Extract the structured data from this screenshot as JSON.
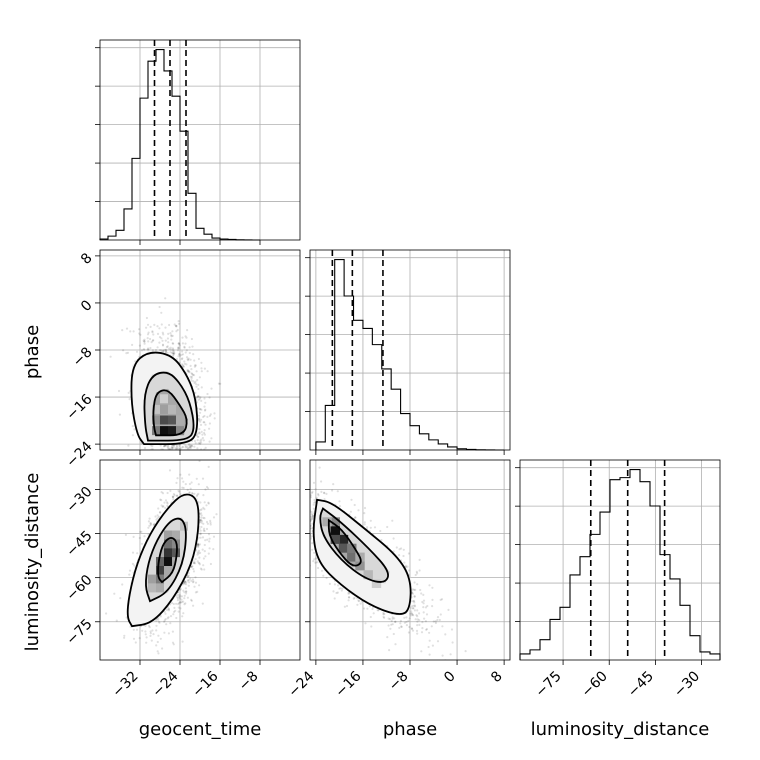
{
  "chart_data": {
    "type": "corner",
    "parameters": [
      "geocent_time",
      "phase",
      "luminosity_distance"
    ],
    "colors": {
      "line": "#000000",
      "points": "#000000",
      "grid": "#b0b0b0"
    },
    "grid": true,
    "marginals": [
      {
        "name": "geocent_time",
        "xlim": [
          -40,
          0
        ],
        "xticks": [
          -32,
          -24,
          -16,
          -8
        ],
        "xticklabels": [
          "−32",
          "−24",
          "−16",
          "−8"
        ],
        "quantiles": [
          -29.1,
          -26.0,
          -22.8
        ],
        "bin_edges": [
          -40,
          -38.4,
          -36.8,
          -35.2,
          -33.6,
          -32,
          -30.4,
          -28.8,
          -27.2,
          -25.6,
          -24,
          -22.4,
          -20.8,
          -19.2,
          -17.6,
          -16,
          -14.4,
          -12.8,
          -11.2,
          -9.6,
          -8
        ],
        "counts": [
          0.5,
          2,
          5,
          16,
          42,
          73,
          92,
          98,
          87,
          74,
          56,
          24,
          6,
          3,
          1,
          0.5,
          0.3,
          0.1,
          0.05,
          0
        ]
      },
      {
        "name": "phase",
        "xlim": [
          -25,
          9
        ],
        "xticks": [
          -24,
          -16,
          -8,
          0,
          8
        ],
        "xticklabels": [
          "−24",
          "−16",
          "−8",
          "0",
          "8"
        ],
        "quantiles": [
          -21.2,
          -17.8,
          -12.6
        ],
        "bin_edges": [
          -24,
          -22.4,
          -20.8,
          -19.2,
          -17.6,
          -16,
          -14.4,
          -12.8,
          -11.2,
          -9.6,
          -8,
          -6.4,
          -4.8,
          -3.2,
          -1.6,
          0,
          1.6,
          3.2,
          4.8,
          6.4,
          8
        ],
        "counts": [
          4,
          22,
          94,
          76,
          64,
          60,
          52,
          40,
          30,
          18,
          12,
          8,
          5,
          3,
          1.5,
          0.6,
          0.3,
          0.1,
          0.05,
          0
        ]
      },
      {
        "name": "luminosity_distance",
        "xlim": [
          -89,
          -24
        ],
        "xticks": [
          -75,
          -60,
          -45,
          -30
        ],
        "xticklabels": [
          "−75",
          "−60",
          "−45",
          "−30"
        ],
        "quantiles": [
          -66.0,
          -54.0,
          -42.0
        ],
        "bin_edges": [
          -89,
          -85.75,
          -82.5,
          -79.25,
          -76,
          -72.75,
          -69.5,
          -66.25,
          -63,
          -59.75,
          -56.5,
          -53.25,
          -50,
          -46.75,
          -43.5,
          -40.25,
          -37,
          -33.75,
          -30.5,
          -27.25,
          -24
        ],
        "counts": [
          3,
          5,
          10,
          20,
          26,
          42,
          51,
          62,
          73,
          89,
          90,
          94,
          88,
          76,
          52,
          40,
          27,
          12,
          4,
          3
        ]
      }
    ],
    "pairs": [
      {
        "x": "geocent_time",
        "y": "phase",
        "xlim": [
          -40,
          0
        ],
        "ylim": [
          -25,
          9
        ],
        "yticks": [
          8,
          0,
          -8,
          -16,
          -24
        ],
        "yticklabels": [
          "8",
          "0",
          "−8",
          "−16",
          "−24"
        ],
        "mean": [
          -26,
          -17
        ],
        "sd": [
          3.2,
          5.5
        ],
        "corr": -0.25,
        "cells": [
          {
            "x": -27.2,
            "y": -21.7,
            "v": 1.0
          },
          {
            "x": -25.6,
            "y": -21.7,
            "v": 0.95
          },
          {
            "x": -27.2,
            "y": -19.9,
            "v": 0.75
          },
          {
            "x": -25.6,
            "y": -19.9,
            "v": 0.7
          },
          {
            "x": -28.8,
            "y": -21.7,
            "v": 0.55
          },
          {
            "x": -28.8,
            "y": -19.9,
            "v": 0.45
          },
          {
            "x": -24.0,
            "y": -21.7,
            "v": 0.5
          },
          {
            "x": -24.0,
            "y": -19.9,
            "v": 0.35
          },
          {
            "x": -27.2,
            "y": -18.1,
            "v": 0.4
          },
          {
            "x": -25.6,
            "y": -18.1,
            "v": 0.3
          },
          {
            "x": -28.8,
            "y": -18.1,
            "v": 0.25
          },
          {
            "x": -27.2,
            "y": -16.3,
            "v": 0.2
          }
        ],
        "contours": [
          [
            [
              -28.8,
              -22.5
            ],
            [
              -23.2,
              -22.5
            ],
            [
              -22.4,
              -19.8
            ],
            [
              -24,
              -17.4
            ],
            [
              -26.4,
              -14.6
            ],
            [
              -28.8,
              -15.2
            ],
            [
              -29.4,
              -18.4
            ],
            [
              -29.2,
              -21.2
            ]
          ],
          [
            [
              -30.4,
              -23.4
            ],
            [
              -22.4,
              -23.4
            ],
            [
              -21.0,
              -21.4
            ],
            [
              -22.0,
              -16.8
            ],
            [
              -24.0,
              -13.6
            ],
            [
              -26.4,
              -11.6
            ],
            [
              -29.6,
              -12.2
            ],
            [
              -31.2,
              -15.6
            ],
            [
              -31.0,
              -20.8
            ]
          ],
          [
            [
              -31.2,
              -24.0
            ],
            [
              -22.4,
              -24.0
            ],
            [
              -20.4,
              -22.0
            ],
            [
              -20.8,
              -16.2
            ],
            [
              -22.6,
              -12.2
            ],
            [
              -25.6,
              -8.8
            ],
            [
              -30.4,
              -8.2
            ],
            [
              -33.6,
              -10.6
            ],
            [
              -33.8,
              -16.8
            ],
            [
              -32.6,
              -22.4
            ]
          ]
        ]
      },
      {
        "x": "geocent_time",
        "y": "luminosity_distance",
        "xlim": [
          -40,
          0
        ],
        "ylim": [
          -88,
          -20
        ],
        "yticks": [
          -30,
          -45,
          -60,
          -75
        ],
        "yticklabels": [
          "−30",
          "−45",
          "−60",
          "−75"
        ],
        "mean": [
          -26,
          -54
        ],
        "sd": [
          3.2,
          11
        ],
        "corr": 0.5,
        "cells": [
          {
            "x": -26.4,
            "y": -54.5,
            "v": 1.0
          },
          {
            "x": -26.4,
            "y": -51.5,
            "v": 0.85
          },
          {
            "x": -28.0,
            "y": -57.5,
            "v": 0.8
          },
          {
            "x": -24.8,
            "y": -51.5,
            "v": 0.7
          },
          {
            "x": -26.4,
            "y": -48.5,
            "v": 0.6
          },
          {
            "x": -28.0,
            "y": -54.5,
            "v": 0.65
          },
          {
            "x": -28.0,
            "y": -60.5,
            "v": 0.55
          },
          {
            "x": -24.8,
            "y": -48.5,
            "v": 0.5
          },
          {
            "x": -24.8,
            "y": -45.5,
            "v": 0.35
          },
          {
            "x": -29.6,
            "y": -60.5,
            "v": 0.4
          },
          {
            "x": -26.4,
            "y": -45.5,
            "v": 0.4
          },
          {
            "x": -29.6,
            "y": -63.5,
            "v": 0.3
          },
          {
            "x": -23.2,
            "y": -42.5,
            "v": 0.25
          },
          {
            "x": -28.0,
            "y": -63.5,
            "v": 0.35
          }
        ],
        "contours": [
          [
            [
              -27.6,
              -61.5
            ],
            [
              -25.4,
              -58.5
            ],
            [
              -24.6,
              -52.5
            ],
            [
              -24.6,
              -47.5
            ],
            [
              -26.0,
              -46.0
            ],
            [
              -27.6,
              -49.0
            ],
            [
              -28.4,
              -55.5
            ],
            [
              -28.4,
              -60.0
            ]
          ],
          [
            [
              -30.0,
              -68.0
            ],
            [
              -26.4,
              -65.0
            ],
            [
              -23.4,
              -55.5
            ],
            [
              -22.6,
              -44.5
            ],
            [
              -23.6,
              -39.5
            ],
            [
              -26.0,
              -40.5
            ],
            [
              -28.6,
              -47.0
            ],
            [
              -30.4,
              -55.0
            ],
            [
              -31.0,
              -63.0
            ]
          ],
          [
            [
              -33.6,
              -76.5
            ],
            [
              -29.6,
              -75.5
            ],
            [
              -25.4,
              -67.5
            ],
            [
              -21.6,
              -55.5
            ],
            [
              -20.2,
              -43.5
            ],
            [
              -20.4,
              -33.0
            ],
            [
              -23.2,
              -31.0
            ],
            [
              -26.6,
              -36.5
            ],
            [
              -30.0,
              -45.0
            ],
            [
              -32.6,
              -55.0
            ],
            [
              -34.2,
              -66.0
            ],
            [
              -34.6,
              -73.5
            ]
          ]
        ]
      },
      {
        "x": "phase",
        "y": "luminosity_distance",
        "xlim": [
          -25,
          9
        ],
        "ylim": [
          -88,
          -20
        ],
        "yticks": [
          -30,
          -45,
          -60,
          -75
        ],
        "yticklabels": [
          "−30",
          "−45",
          "−60",
          "−75"
        ],
        "mean": [
          -17,
          -54
        ],
        "sd": [
          5.5,
          11
        ],
        "corr": -0.8,
        "cells": [
          {
            "x": -20.7,
            "y": -44.0,
            "v": 1.0
          },
          {
            "x": -19.3,
            "y": -47.0,
            "v": 0.9
          },
          {
            "x": -20.7,
            "y": -47.0,
            "v": 0.75
          },
          {
            "x": -19.3,
            "y": -50.0,
            "v": 0.7
          },
          {
            "x": -17.9,
            "y": -53.0,
            "v": 0.6
          },
          {
            "x": -17.9,
            "y": -50.0,
            "v": 0.55
          },
          {
            "x": -16.5,
            "y": -56.0,
            "v": 0.45
          },
          {
            "x": -20.7,
            "y": -41.0,
            "v": 0.5
          },
          {
            "x": -15.1,
            "y": -59.0,
            "v": 0.3
          },
          {
            "x": -22.1,
            "y": -41.0,
            "v": 0.35
          },
          {
            "x": -13.7,
            "y": -62.0,
            "v": 0.2
          },
          {
            "x": -16.5,
            "y": -53.0,
            "v": 0.35
          }
        ],
        "contours": [
          [
            [
              -21.8,
              -40.5
            ],
            [
              -19.6,
              -43.5
            ],
            [
              -17.2,
              -50.5
            ],
            [
              -16.0,
              -55.0
            ],
            [
              -17.8,
              -56.5
            ],
            [
              -20.2,
              -51.0
            ],
            [
              -21.8,
              -45.5
            ]
          ],
          [
            [
              -22.8,
              -36.5
            ],
            [
              -19.8,
              -41.0
            ],
            [
              -15.0,
              -50.0
            ],
            [
              -11.4,
              -58.0
            ],
            [
              -12.2,
              -62.0
            ],
            [
              -15.6,
              -60.5
            ],
            [
              -19.8,
              -54.0
            ],
            [
              -22.8,
              -46.0
            ],
            [
              -23.4,
              -39.5
            ]
          ],
          [
            [
              -23.8,
              -33.5
            ],
            [
              -21.2,
              -34.5
            ],
            [
              -15.6,
              -43.5
            ],
            [
              -10.2,
              -52.5
            ],
            [
              -7.8,
              -60.5
            ],
            [
              -8.0,
              -71.0
            ],
            [
              -9.8,
              -73.0
            ],
            [
              -14.8,
              -69.5
            ],
            [
              -19.8,
              -62.5
            ],
            [
              -23.6,
              -55.0
            ],
            [
              -24.6,
              -45.0
            ]
          ]
        ]
      }
    ]
  }
}
